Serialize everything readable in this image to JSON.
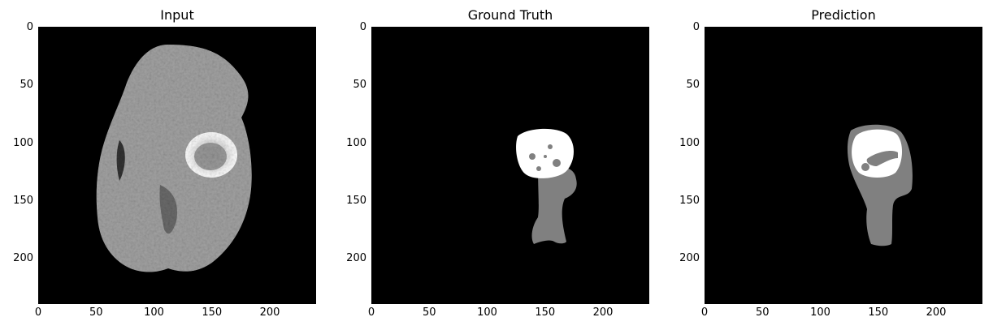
{
  "figure": {
    "panels": [
      {
        "title": "Input",
        "content": "brain-mri-slice",
        "x_ticks": [
          "0",
          "50",
          "100",
          "150",
          "200"
        ],
        "y_ticks": [
          "0",
          "50",
          "100",
          "150",
          "200"
        ]
      },
      {
        "title": "Ground Truth",
        "content": "segmentation-mask",
        "x_ticks": [
          "0",
          "50",
          "100",
          "150",
          "200"
        ],
        "y_ticks": [
          "0",
          "50",
          "100",
          "150",
          "200"
        ]
      },
      {
        "title": "Prediction",
        "content": "segmentation-mask",
        "x_ticks": [
          "0",
          "50",
          "100",
          "150",
          "200"
        ],
        "y_ticks": [
          "0",
          "50",
          "100",
          "150",
          "200"
        ]
      }
    ],
    "colors": {
      "background": "#000000",
      "tissue": "#a0a0a0",
      "mask_edema": "#808080",
      "mask_core": "#ffffff",
      "tick_text": "#000000"
    }
  }
}
